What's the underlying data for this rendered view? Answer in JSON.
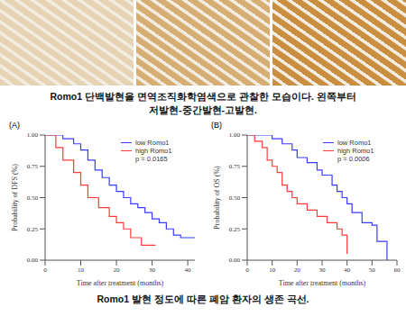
{
  "image_caption": [
    "Romo1 단백발현을 면역조직화학염색으로 관찰한 모습이다. 왼쪽부터",
    "저발현-중간발현-고발현."
  ],
  "chart_caption": "Romo1 발현 정도에 따른 폐암 환자의 생존 곡선.",
  "chart_data": [
    {
      "type": "line",
      "title": "(A)",
      "x_label": "Time after treatment (months)",
      "y_label": "Probability of DFS (%)",
      "annotation": "p = 0.0165",
      "line_style": "step",
      "xlim": [
        0,
        42
      ],
      "xticks": [
        0,
        10,
        20,
        30,
        40
      ],
      "ylim": [
        0,
        1
      ],
      "yticks": [
        {
          "value": 0,
          "label": "0.00"
        },
        {
          "value": 0.25,
          "label": "0.25"
        },
        {
          "value": 0.5,
          "label": "0.50"
        },
        {
          "value": 0.75,
          "label": "0.75"
        },
        {
          "value": 1,
          "label": "1.00"
        }
      ],
      "series": [
        {
          "name": "low Romo1",
          "color": "#3a3aff",
          "x": [
            0,
            5,
            8,
            10,
            12,
            14,
            16,
            18,
            20,
            22,
            24,
            26,
            28,
            30,
            32,
            34,
            36,
            38,
            42
          ],
          "values": [
            1.0,
            0.97,
            0.93,
            0.88,
            0.8,
            0.72,
            0.66,
            0.6,
            0.55,
            0.5,
            0.45,
            0.42,
            0.38,
            0.33,
            0.3,
            0.25,
            0.2,
            0.18,
            0.18
          ]
        },
        {
          "name": "high Romo1",
          "color": "#ff3a3a",
          "x": [
            0,
            3,
            5,
            8,
            10,
            12,
            15,
            18,
            20,
            22,
            24,
            27,
            31
          ],
          "values": [
            1.0,
            0.9,
            0.8,
            0.7,
            0.6,
            0.5,
            0.42,
            0.35,
            0.3,
            0.25,
            0.18,
            0.12,
            0.12
          ]
        }
      ]
    },
    {
      "type": "line",
      "title": "(B)",
      "x_label": "Time after treatment (months)",
      "y_label": "Probability of OS (%)",
      "annotation": "p = 0.0006",
      "line_style": "step",
      "xlim": [
        0,
        60
      ],
      "xticks": [
        0,
        10,
        20,
        30,
        40,
        50,
        60
      ],
      "ylim": [
        0,
        1
      ],
      "yticks": [
        {
          "value": 0,
          "label": "0.00"
        },
        {
          "value": 0.25,
          "label": "0.25"
        },
        {
          "value": 0.5,
          "label": "0.50"
        },
        {
          "value": 0.75,
          "label": "0.75"
        },
        {
          "value": 1,
          "label": "1.00"
        }
      ],
      "series": [
        {
          "name": "low Romo1",
          "color": "#3a3aff",
          "x": [
            0,
            10,
            14,
            18,
            20,
            24,
            28,
            30,
            34,
            36,
            38,
            40,
            42,
            46,
            50,
            52,
            55,
            56
          ],
          "values": [
            1.0,
            0.97,
            0.93,
            0.88,
            0.82,
            0.78,
            0.72,
            0.68,
            0.6,
            0.55,
            0.5,
            0.45,
            0.38,
            0.3,
            0.28,
            0.15,
            0.15,
            0.0
          ]
        },
        {
          "name": "high Romo1",
          "color": "#ff3a3a",
          "x": [
            0,
            3,
            6,
            8,
            10,
            12,
            14,
            16,
            18,
            20,
            24,
            28,
            32,
            36,
            38,
            40
          ],
          "values": [
            1.0,
            0.95,
            0.9,
            0.8,
            0.75,
            0.7,
            0.6,
            0.55,
            0.5,
            0.45,
            0.4,
            0.35,
            0.3,
            0.25,
            0.2,
            0.05
          ]
        }
      ]
    }
  ]
}
